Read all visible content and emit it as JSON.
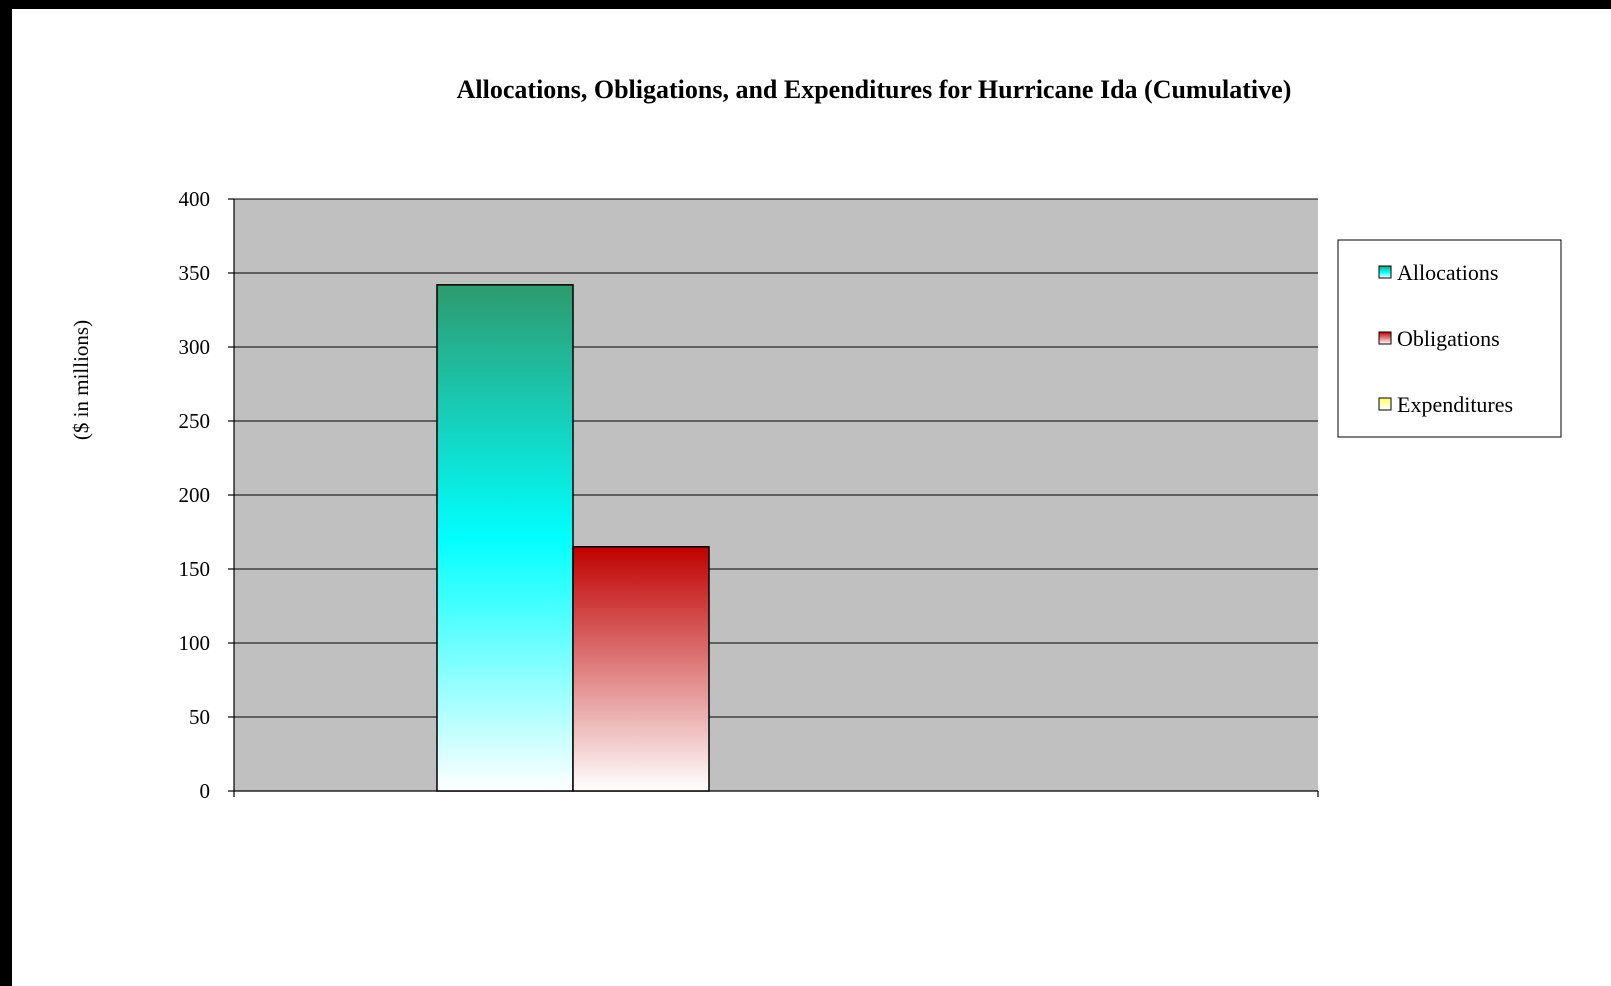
{
  "chart_data": {
    "type": "bar",
    "title": "Allocations, Obligations, and Expenditures for Hurricane Ida (Cumulative)",
    "xlabel": "",
    "ylabel": "($ in millions)",
    "ylim": [
      0,
      400
    ],
    "yticks": [
      0,
      50,
      100,
      150,
      200,
      250,
      300,
      350,
      400
    ],
    "grid": true,
    "legend_position": "right",
    "categories": [
      ""
    ],
    "series": [
      {
        "name": "Allocations",
        "values": [
          342
        ],
        "colors": [
          "#2e9a6e",
          "#00ffff",
          "#ffffff"
        ]
      },
      {
        "name": "Obligations",
        "values": [
          165
        ],
        "colors": [
          "#c00000",
          "#ffffff"
        ]
      },
      {
        "name": "Expenditures",
        "values": [
          0
        ],
        "colors": [
          "#ffff66",
          "#ffffff"
        ]
      }
    ],
    "plot_background": "#c0c0c0"
  }
}
